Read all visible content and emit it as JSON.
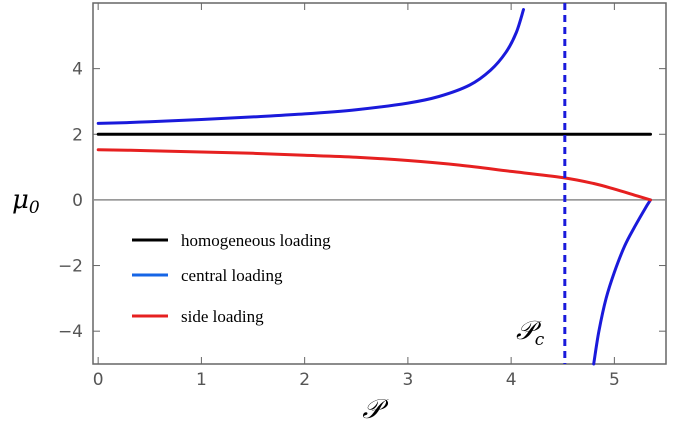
{
  "chart_data": {
    "type": "line",
    "xlabel": "𝒫",
    "ylabel": "μ",
    "ylabel_subscript": "0",
    "annotation": {
      "text": "𝒫",
      "subscript": "c",
      "x": 4.52
    },
    "xlim": [
      -0.05,
      5.5
    ],
    "ylim": [
      -5,
      6
    ],
    "xticks": [
      0,
      1,
      2,
      3,
      4,
      5
    ],
    "yticks": [
      -4,
      -2,
      0,
      2,
      4
    ],
    "grid": false,
    "legend_position": "bottom-left",
    "critical_x": 4.52,
    "zero_line": {
      "y": 0,
      "color": "#8c8c8c"
    },
    "series": [
      {
        "name": "homogeneous loading",
        "color": "#000000",
        "x": [
          0,
          5.35
        ],
        "y": [
          2,
          2
        ]
      },
      {
        "name": "central loading",
        "color": "#1a1adb",
        "legend_color": "#1565e6",
        "segments": [
          {
            "x": [
              0,
              0.5,
              1.0,
              1.5,
              2.0,
              2.5,
              3.0,
              3.3,
              3.6,
              3.8,
              3.95,
              4.05,
              4.12
            ],
            "y": [
              2.33,
              2.38,
              2.45,
              2.53,
              2.62,
              2.75,
              2.95,
              3.15,
              3.5,
              3.95,
              4.5,
              5.1,
              5.8
            ]
          },
          {
            "x": [
              4.8,
              4.85,
              4.92,
              5.0,
              5.1,
              5.2,
              5.3,
              5.35
            ],
            "y": [
              -5.0,
              -4.0,
              -3.0,
              -2.2,
              -1.4,
              -0.8,
              -0.25,
              0.0
            ]
          }
        ]
      },
      {
        "name": "side loading",
        "color": "#e62020",
        "x": [
          0,
          0.5,
          1.0,
          1.5,
          2.0,
          2.5,
          3.0,
          3.5,
          4.0,
          4.5,
          4.8,
          5.0,
          5.2,
          5.35
        ],
        "y": [
          1.53,
          1.5,
          1.46,
          1.42,
          1.36,
          1.3,
          1.2,
          1.06,
          0.87,
          0.68,
          0.5,
          0.33,
          0.14,
          0.0
        ]
      }
    ]
  }
}
